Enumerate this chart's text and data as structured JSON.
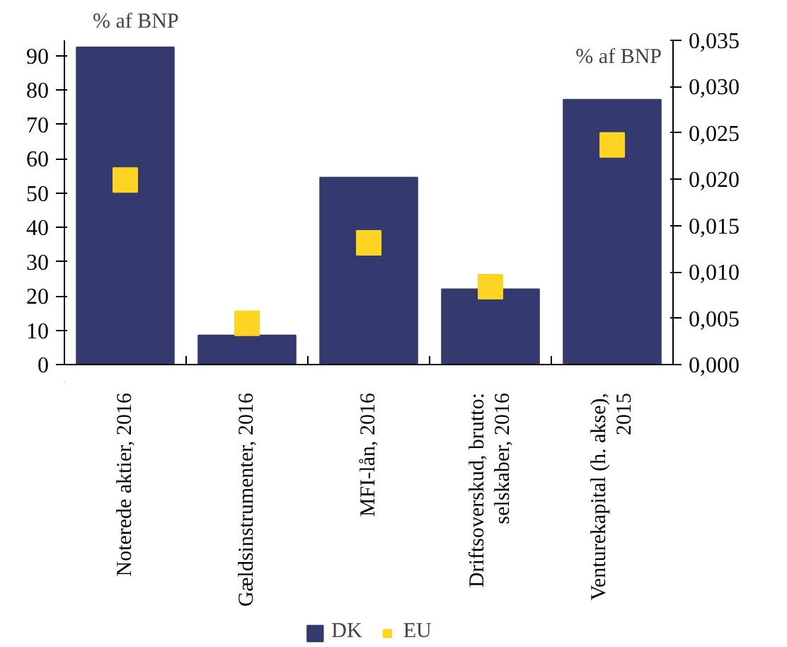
{
  "chart_data": {
    "type": "bar",
    "categories": [
      "Noterede aktier, 2016",
      "Gældsinstrumenter, 2016",
      "MFI-lån, 2016",
      "Driftsoverskud, brutto:\nselskaber, 2016",
      "Venturekapital (h. akse),\n2015"
    ],
    "ylabel": "% af BNP",
    "y2label": "% af BNP",
    "series": [
      {
        "name": "DK",
        "color": "#353a6e",
        "values": [
          92.5,
          8.5,
          54.5,
          22,
          null
        ]
      },
      {
        "axis": "y2",
        "color": "#353a6e",
        "values": [
          null,
          null,
          null,
          null,
          0.0286
        ]
      },
      {
        "name": "EU",
        "type": "scatter",
        "color": "#fdd422",
        "values": [
          53.8,
          12,
          35.5,
          22.7,
          null
        ]
      },
      {
        "type": "scatter",
        "axis": "y2",
        "color": "#fdd422",
        "values": [
          null,
          null,
          null,
          null,
          0.0237
        ]
      }
    ],
    "marker": "square",
    "ylim": [
      0,
      94.5
    ],
    "yticks": [
      0,
      10,
      20,
      30,
      40,
      50,
      60,
      70,
      80,
      90
    ],
    "y2lim": [
      0,
      0.035
    ],
    "y2ticks": [
      {
        "value": 0,
        "label": "0,000"
      },
      {
        "value": 0.005,
        "label": "0,005"
      },
      {
        "value": 0.01,
        "label": "0,010"
      },
      {
        "value": 0.015,
        "label": "0,015"
      },
      {
        "value": 0.02,
        "label": "0,020"
      },
      {
        "value": 0.025,
        "label": "0,025"
      },
      {
        "value": 0.03,
        "label": "0,030"
      },
      {
        "value": 0.035,
        "label": "0,035"
      }
    ],
    "grid": false,
    "legend": "bottom"
  }
}
